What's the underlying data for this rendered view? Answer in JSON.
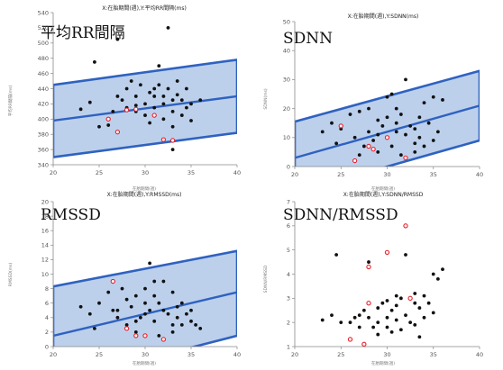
{
  "chart_data": [
    {
      "type": "scatter",
      "title": "X:在胎期間(週),Y:平均RR間隔(ms)",
      "label": "平均RR間隔",
      "xlabel": "在胎期間(週)",
      "ylabel": "平均RR間隔(ms)",
      "xlim": [
        20,
        40
      ],
      "ylim": [
        340,
        540
      ],
      "xticks": [
        20,
        25,
        30,
        35,
        40
      ],
      "yticks": [
        340,
        360,
        380,
        400,
        420,
        440,
        460,
        480,
        500,
        520,
        540
      ],
      "grid": false,
      "fit": {
        "x": [
          20,
          40
        ],
        "y": [
          398,
          430
        ]
      },
      "band": {
        "upper": [
          445,
          478
        ],
        "lower": [
          350,
          382
        ]
      },
      "points_black": [
        [
          23,
          413
        ],
        [
          24,
          422
        ],
        [
          24.5,
          475
        ],
        [
          25,
          390
        ],
        [
          26,
          392
        ],
        [
          26.5,
          410
        ],
        [
          27,
          505
        ],
        [
          27.5,
          425
        ],
        [
          28,
          440
        ],
        [
          28,
          415
        ],
        [
          28.5,
          450
        ],
        [
          29,
          410
        ],
        [
          29,
          430
        ],
        [
          29.5,
          445
        ],
        [
          30,
          420
        ],
        [
          30,
          405
        ],
        [
          30.5,
          435
        ],
        [
          30.5,
          395
        ],
        [
          31,
          430
        ],
        [
          31,
          415
        ],
        [
          31.5,
          470
        ],
        [
          31.5,
          445
        ],
        [
          32,
          420
        ],
        [
          32,
          400
        ],
        [
          32,
          430
        ],
        [
          32.5,
          520
        ],
        [
          32.5,
          440
        ],
        [
          33,
          425
        ],
        [
          33,
          410
        ],
        [
          33,
          390
        ],
        [
          33.5,
          450
        ],
        [
          33.5,
          432
        ],
        [
          34,
          425
        ],
        [
          34,
          405
        ],
        [
          34.5,
          440
        ],
        [
          34.5,
          415
        ],
        [
          35,
          420
        ],
        [
          35,
          398
        ],
        [
          36,
          425
        ],
        [
          31,
          440
        ],
        [
          29,
          418
        ],
        [
          27,
          430
        ],
        [
          33,
          360
        ]
      ],
      "points_red": [
        [
          26,
          400
        ],
        [
          27,
          383
        ],
        [
          28,
          412
        ],
        [
          29,
          413
        ],
        [
          31,
          405
        ],
        [
          32,
          373
        ],
        [
          33,
          372
        ]
      ]
    },
    {
      "type": "scatter",
      "title": "X:在胎期間(週),Y:SDNN(ms)",
      "label": "SDNN",
      "xlabel": "在胎期間(週)",
      "ylabel": "SDNN(ms)",
      "xlim": [
        20,
        40
      ],
      "ylim": [
        0,
        50
      ],
      "xticks": [
        20,
        25,
        30,
        35,
        40
      ],
      "yticks": [
        0,
        10,
        20,
        30,
        40,
        50
      ],
      "grid": false,
      "fit": {
        "x": [
          20,
          40
        ],
        "y": [
          3,
          21
        ]
      },
      "band": {
        "upper": [
          15.5,
          33
        ],
        "lower": [
          -9,
          9
        ]
      },
      "points_black": [
        [
          23,
          12
        ],
        [
          24,
          15
        ],
        [
          24.5,
          8
        ],
        [
          25,
          13
        ],
        [
          26,
          18
        ],
        [
          26.5,
          10
        ],
        [
          27,
          19
        ],
        [
          27.5,
          7
        ],
        [
          28,
          12
        ],
        [
          28,
          20
        ],
        [
          28.5,
          9
        ],
        [
          29,
          16
        ],
        [
          29,
          5
        ],
        [
          29.5,
          14
        ],
        [
          30,
          24
        ],
        [
          30,
          10
        ],
        [
          30.5,
          25
        ],
        [
          30.5,
          7
        ],
        [
          31,
          15
        ],
        [
          31,
          12
        ],
        [
          31.5,
          18
        ],
        [
          31.5,
          4
        ],
        [
          32,
          30
        ],
        [
          32,
          11
        ],
        [
          32.5,
          14
        ],
        [
          33,
          8
        ],
        [
          33,
          13
        ],
        [
          33.5,
          17
        ],
        [
          33.5,
          10
        ],
        [
          34,
          22
        ],
        [
          34,
          7
        ],
        [
          34.5,
          15
        ],
        [
          35,
          24
        ],
        [
          35,
          9
        ],
        [
          35.5,
          12
        ],
        [
          36,
          23
        ],
        [
          29,
          11
        ],
        [
          27,
          4
        ],
        [
          31,
          20
        ],
        [
          33,
          5
        ],
        [
          30,
          17
        ]
      ],
      "points_red": [
        [
          25,
          14
        ],
        [
          26.5,
          2
        ],
        [
          28,
          7
        ],
        [
          28.5,
          6
        ],
        [
          30,
          10
        ],
        [
          32,
          3
        ]
      ]
    },
    {
      "type": "scatter",
      "title": "X:在胎期間(週),Y:RMSSD(ms)",
      "label": "RMSSD",
      "xlabel": "在胎期間(週)",
      "ylabel": "RMSSD(ms)",
      "xlim": [
        20,
        40
      ],
      "ylim": [
        0,
        20
      ],
      "xticks": [
        20,
        25,
        30,
        35,
        40
      ],
      "yticks": [
        0,
        2,
        4,
        6,
        8,
        10,
        12,
        14,
        16,
        18,
        20
      ],
      "grid": false,
      "fit": {
        "x": [
          20,
          40
        ],
        "y": [
          1.5,
          7.5
        ]
      },
      "band": {
        "upper": [
          8.3,
          13.2
        ],
        "lower": [
          -5,
          1.5
        ]
      },
      "points_black": [
        [
          23,
          5.5
        ],
        [
          24,
          4.5
        ],
        [
          24.5,
          2.5
        ],
        [
          25,
          6
        ],
        [
          26,
          7.5
        ],
        [
          26.5,
          5
        ],
        [
          27,
          4
        ],
        [
          27.5,
          8
        ],
        [
          28,
          6.5
        ],
        [
          28,
          3
        ],
        [
          28.5,
          5.5
        ],
        [
          29,
          7
        ],
        [
          29,
          2
        ],
        [
          29.5,
          4
        ],
        [
          30,
          8
        ],
        [
          30,
          6
        ],
        [
          30.5,
          11.5
        ],
        [
          30.5,
          5
        ],
        [
          31,
          7
        ],
        [
          31,
          3.5
        ],
        [
          31.5,
          6
        ],
        [
          31.5,
          1.5
        ],
        [
          32,
          9
        ],
        [
          32,
          5
        ],
        [
          32.5,
          4.5
        ],
        [
          33,
          7.5
        ],
        [
          33,
          3
        ],
        [
          33.5,
          5.5
        ],
        [
          33.5,
          4
        ],
        [
          34,
          6
        ],
        [
          34,
          3
        ],
        [
          34.5,
          4.5
        ],
        [
          35,
          3.5
        ],
        [
          35,
          5
        ],
        [
          35.5,
          3
        ],
        [
          36,
          2.5
        ],
        [
          29,
          3.5
        ],
        [
          27,
          5
        ],
        [
          31,
          9
        ],
        [
          33,
          2
        ],
        [
          30,
          4.5
        ]
      ],
      "points_red": [
        [
          26.5,
          9
        ],
        [
          28,
          2.5
        ],
        [
          29,
          1.5
        ],
        [
          30,
          1.5
        ],
        [
          32,
          1
        ]
      ]
    },
    {
      "type": "scatter",
      "title": "X:在胎期間(週),Y:SDNN/RMSSD",
      "label": "SDNN/RMSSD",
      "xlabel": "在胎期間(週)",
      "ylabel": "SDNN/RMSSD",
      "xlim": [
        20,
        40
      ],
      "ylim": [
        1,
        7
      ],
      "xticks": [
        20,
        25,
        30,
        35,
        40
      ],
      "yticks": [
        1,
        2,
        3,
        4,
        5,
        6,
        7
      ],
      "grid": false,
      "points_black": [
        [
          23,
          2.1
        ],
        [
          24,
          2.3
        ],
        [
          24.5,
          4.8
        ],
        [
          25,
          2.0
        ],
        [
          26,
          2.0
        ],
        [
          26.5,
          2.2
        ],
        [
          27,
          1.8
        ],
        [
          27.5,
          2.5
        ],
        [
          28,
          2.2
        ],
        [
          28,
          4.5
        ],
        [
          28.5,
          1.8
        ],
        [
          29,
          2.6
        ],
        [
          29,
          1.5
        ],
        [
          29.5,
          2.8
        ],
        [
          30,
          2.2
        ],
        [
          30,
          1.8
        ],
        [
          30.5,
          2.5
        ],
        [
          30.5,
          1.6
        ],
        [
          31,
          2.7
        ],
        [
          31,
          2.1
        ],
        [
          31.5,
          3.0
        ],
        [
          31.5,
          1.7
        ],
        [
          32,
          4.8
        ],
        [
          32,
          2.3
        ],
        [
          32.5,
          2.0
        ],
        [
          33,
          3.2
        ],
        [
          33,
          1.9
        ],
        [
          33.5,
          2.6
        ],
        [
          33.5,
          1.4
        ],
        [
          34,
          3.1
        ],
        [
          34,
          2.2
        ],
        [
          34.5,
          2.8
        ],
        [
          35,
          4.0
        ],
        [
          35,
          2.4
        ],
        [
          35.5,
          3.8
        ],
        [
          36,
          4.2
        ],
        [
          29,
          2.0
        ],
        [
          27,
          2.3
        ],
        [
          31,
          3.1
        ],
        [
          33,
          2.8
        ],
        [
          30,
          2.9
        ]
      ],
      "points_red": [
        [
          26,
          1.3
        ],
        [
          27.5,
          1.1
        ],
        [
          28,
          2.8
        ],
        [
          28,
          4.3
        ],
        [
          30,
          4.9
        ],
        [
          32,
          6.0
        ],
        [
          32.5,
          3.0
        ]
      ]
    }
  ]
}
